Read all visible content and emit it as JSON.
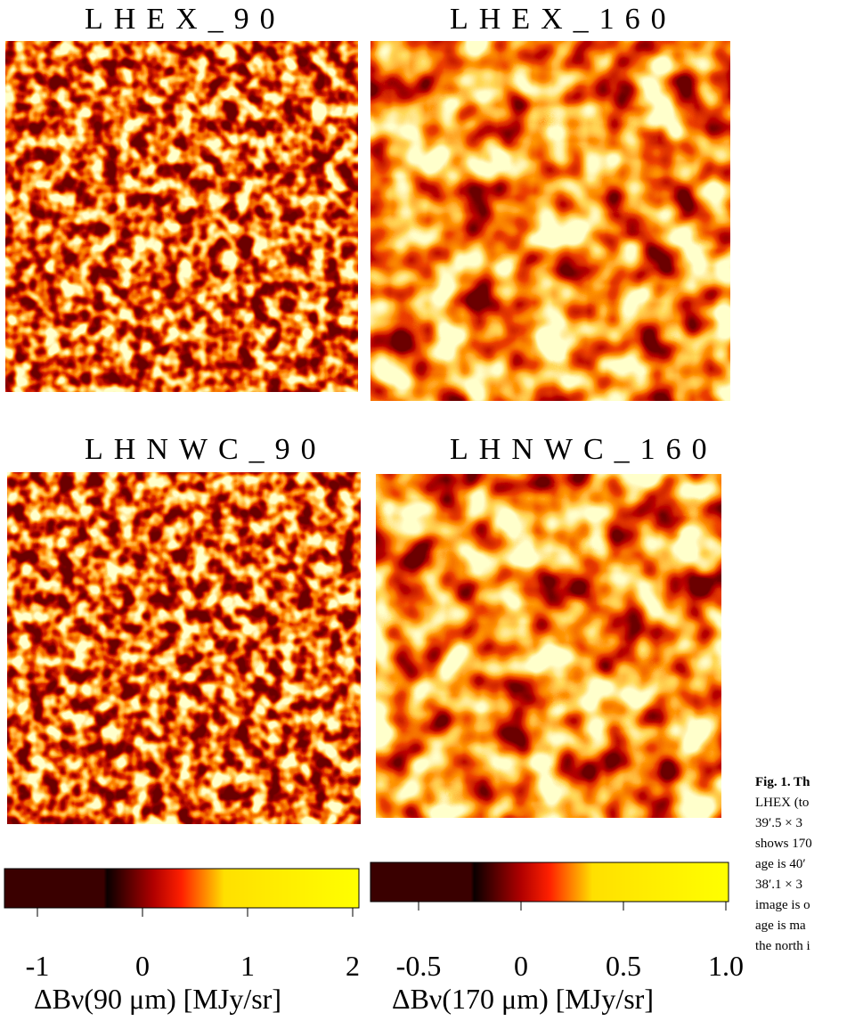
{
  "figure": {
    "panels": [
      {
        "title": "LHEX_90"
      },
      {
        "title": "LHEX_160"
      },
      {
        "title": "LHNWC_90"
      },
      {
        "title": "LHNWC_160"
      }
    ],
    "colorbars": [
      {
        "ticks": [
          "-1",
          "0",
          "1",
          "2"
        ],
        "label": "ΔBν(90 μm) [MJy/sr]"
      },
      {
        "ticks": [
          "-0.5",
          "0",
          "0.5",
          "1.0"
        ],
        "label": "ΔBν(170 μm) [MJy/sr]"
      }
    ],
    "caption": [
      "Fig. 1. Th",
      "LHEX (to",
      "39′.5 × 3",
      "shows 170",
      "age is 40′",
      "38′.1 × 3",
      "image is o",
      "age is ma",
      "the north i"
    ]
  }
}
